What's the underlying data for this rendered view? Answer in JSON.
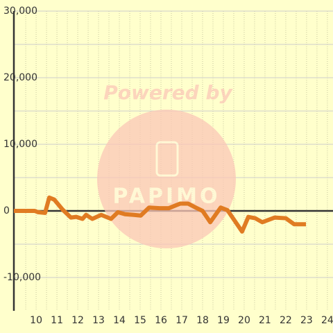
{
  "chart_data": {
    "type": "line",
    "watermark": {
      "text": "Powered by",
      "logo": "PAPIMO"
    },
    "x": [
      8.93,
      9.93,
      10.1,
      10.43,
      10.63,
      10.87,
      11.27,
      11.67,
      11.93,
      12.23,
      12.4,
      12.7,
      13.13,
      13.6,
      13.93,
      14.27,
      14.7,
      15.03,
      15.43,
      15.93,
      16.37,
      16.93,
      17.3,
      17.67,
      18.0,
      18.37,
      18.87,
      19.2,
      19.9,
      20.2,
      20.53,
      20.87,
      21.47,
      22.0,
      22.4,
      22.97
    ],
    "series": [
      {
        "color": "#e07b22",
        "values": [
          0,
          0,
          -200,
          -300,
          2000,
          1700,
          200,
          -1000,
          -900,
          -1200,
          -600,
          -1200,
          -600,
          -1200,
          -200,
          -500,
          -600,
          -700,
          500,
          400,
          400,
          1100,
          1100,
          500,
          0,
          -1700,
          500,
          100,
          -3100,
          -900,
          -1100,
          -1700,
          -1000,
          -1100,
          -2000,
          -2000
        ]
      }
    ],
    "xlim": [
      8.93,
      24.27
    ],
    "xticks": [
      10,
      11,
      12,
      13,
      14,
      15,
      16,
      17,
      18,
      19,
      20,
      21,
      22,
      23,
      24
    ],
    "minor_xticks": [
      9.5,
      10.5,
      11.5,
      12.5,
      13.5,
      14.5,
      15.5,
      16.5,
      17.5,
      18.5,
      19.5,
      20.5,
      21.5,
      22.5,
      23.5
    ],
    "ylim": [
      -15000,
      30000
    ],
    "yticks": [
      {
        "value": -10000,
        "label": "-10,000"
      },
      0,
      {
        "value": 10000,
        "label": "10,000"
      },
      {
        "value": 20000,
        "label": "20,000"
      },
      {
        "value": 30000,
        "label": "30,000"
      }
    ],
    "minor_yticks": [
      -5000,
      5000,
      15000,
      25000
    ],
    "grid": true
  }
}
